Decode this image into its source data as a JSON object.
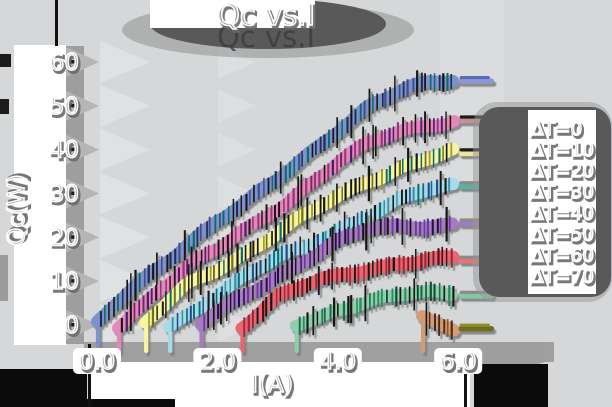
{
  "title": "Qc vs.I",
  "axes": {
    "xlabel": "I(A)",
    "ylabel": "Qc(W)",
    "x_ticks": [
      {
        "v": 0,
        "label": "0.0"
      },
      {
        "v": 2,
        "label": "2.0"
      },
      {
        "v": 4,
        "label": "4.0"
      },
      {
        "v": 6,
        "label": "6.0"
      }
    ],
    "y_ticks": [
      {
        "v": 0,
        "label": "0"
      },
      {
        "v": 10,
        "label": "10"
      },
      {
        "v": 20,
        "label": "20"
      },
      {
        "v": 30,
        "label": "30"
      },
      {
        "v": 40,
        "label": "40"
      },
      {
        "v": 50,
        "label": "50"
      },
      {
        "v": 60,
        "label": "60"
      }
    ]
  },
  "legend": {
    "entries": [
      {
        "label": "ΔT=0",
        "color": "#7e91c8"
      },
      {
        "label": "ΔT=10",
        "color": "#e786ba"
      },
      {
        "label": "ΔT=20",
        "color": "#f8f5a2"
      },
      {
        "label": "ΔT=30",
        "color": "#a6dbe9"
      },
      {
        "label": "ΔT=40",
        "color": "#a77cbf"
      },
      {
        "label": "ΔT=50",
        "color": "#ea6570"
      },
      {
        "label": "ΔT=60",
        "color": "#8fceaa"
      },
      {
        "label": "ΔT=70",
        "color": "#d39b76"
      }
    ]
  },
  "colors": {
    "background": "#d5d7d8",
    "shadow_dark": "#595959",
    "panel_white": "#ffffff",
    "ink_black": "#0b0b0b"
  },
  "chart_data": {
    "type": "line",
    "title": "Qc vs.I",
    "xlabel": "I(A)",
    "ylabel": "Qc(W)",
    "xlim": [
      -0.35,
      6.9
    ],
    "ylim": [
      -4,
      62
    ],
    "x_tick_values": [
      0,
      2,
      4,
      6
    ],
    "y_tick_values": [
      0,
      10,
      20,
      30,
      40,
      50,
      60
    ],
    "legend_position": "right",
    "grid": false,
    "style": "xkcd-sketch-with-errorbars",
    "series": [
      {
        "name": "ΔT=0",
        "color": "#7e91c8",
        "x": [
          0,
          0.5,
          1,
          1.5,
          2,
          2.5,
          3,
          3.5,
          4,
          4.5,
          5,
          5.5,
          5.95
        ],
        "y": [
          0,
          7,
          13,
          19,
          24,
          28,
          33,
          39,
          45,
          50,
          53,
          55,
          56
        ],
        "cap_y": 56,
        "tick_colors": [
          "#1c2f57",
          "#106a6a",
          "#151515",
          "#3a4f8f"
        ],
        "cap_colors": [
          "#5a6cb8",
          "#9098d2"
        ]
      },
      {
        "name": "ΔT=10",
        "color": "#e786ba",
        "x": [
          0.35,
          1,
          1.5,
          2,
          2.5,
          3,
          3.5,
          4,
          4.5,
          5,
          5.5,
          5.95
        ],
        "y": [
          0,
          8,
          13,
          17,
          22,
          27,
          32,
          37,
          41,
          44,
          46,
          47
        ],
        "cap_y": 47,
        "tick_colors": [
          "#6d2a5e",
          "#47206b",
          "#151515",
          "#8c3a76"
        ],
        "cap_colors": [
          "#1a1a1a",
          "#c49098"
        ]
      },
      {
        "name": "ΔT=20",
        "color": "#f8f5a2",
        "x": [
          0.8,
          1.5,
          2,
          2.5,
          3,
          3.5,
          4,
          4.5,
          5,
          5.5,
          5.95
        ],
        "y": [
          0,
          9,
          13,
          17,
          21,
          25,
          29,
          33,
          36,
          38,
          39.5
        ],
        "cap_y": 39.5,
        "tick_colors": [
          "#70701f",
          "#151515",
          "#106a6a",
          "#9a9a30"
        ],
        "cap_colors": [
          "#1a1a1a",
          "#eae69c"
        ]
      },
      {
        "name": "ΔT=30",
        "color": "#a6dbe9",
        "x": [
          1.2,
          2,
          2.5,
          3,
          3.5,
          4,
          4.5,
          5,
          5.5,
          5.95
        ],
        "y": [
          0,
          7,
          11,
          15,
          18,
          22,
          25,
          28,
          30.5,
          32
        ],
        "cap_y": 32,
        "tick_colors": [
          "#0f6a78",
          "#151515",
          "#2a4a8a",
          "#3f8fa0"
        ],
        "cap_colors": [
          "#8a8a8a",
          "#58b2a4"
        ]
      },
      {
        "name": "ΔT=40",
        "color": "#a77cbf",
        "x": [
          1.72,
          2.5,
          3,
          3.5,
          4,
          4.5,
          5,
          5.5,
          5.95
        ],
        "y": [
          0,
          7,
          11.5,
          15.5,
          19,
          21.5,
          22.5,
          23,
          23.5
        ],
        "cap_y": 23.5,
        "tick_colors": [
          "#3f2266",
          "#151515",
          "#6a3a9a",
          "#24104a"
        ],
        "cap_colors": [
          "#8a8a8a",
          "#a07cc2"
        ]
      },
      {
        "name": "ΔT=50",
        "color": "#ea6570",
        "x": [
          2.4,
          3,
          3.5,
          4,
          4.5,
          5,
          5.5,
          5.95
        ],
        "y": [
          0,
          6.5,
          9,
          11,
          13,
          14.5,
          15,
          15
        ],
        "cap_y": 15,
        "tick_colors": [
          "#6d1c28",
          "#151515",
          "#9a2a3a",
          "#4a1018"
        ],
        "cap_colors": [
          "#8a8a8a",
          "#e4737b"
        ]
      },
      {
        "name": "ΔT=60",
        "color": "#8fceaa",
        "x": [
          3.3,
          3.7,
          4,
          4.5,
          5,
          5.5,
          5.95
        ],
        "y": [
          0,
          2,
          4,
          5.5,
          6.5,
          7,
          7
        ],
        "cap_y": 7,
        "tick_colors": [
          "#1c6a4c",
          "#151515",
          "#2a8a60",
          "#0f4a34"
        ],
        "cap_colors": [
          "#8a8a8a",
          "#84c8a4"
        ]
      },
      {
        "name": "ΔT=70",
        "color": "#d39b76",
        "x": [
          5.4,
          5.6,
          5.8,
          5.95
        ],
        "y": [
          2.2,
          1.2,
          0.3,
          -0.5
        ],
        "cap_y": -0.5,
        "tick_colors": [
          "#6d4420",
          "#151515",
          "#8a5a2c",
          "#4a2c12"
        ],
        "cap_colors": [
          "#8e8e2c",
          "#6e6e20"
        ]
      }
    ]
  }
}
